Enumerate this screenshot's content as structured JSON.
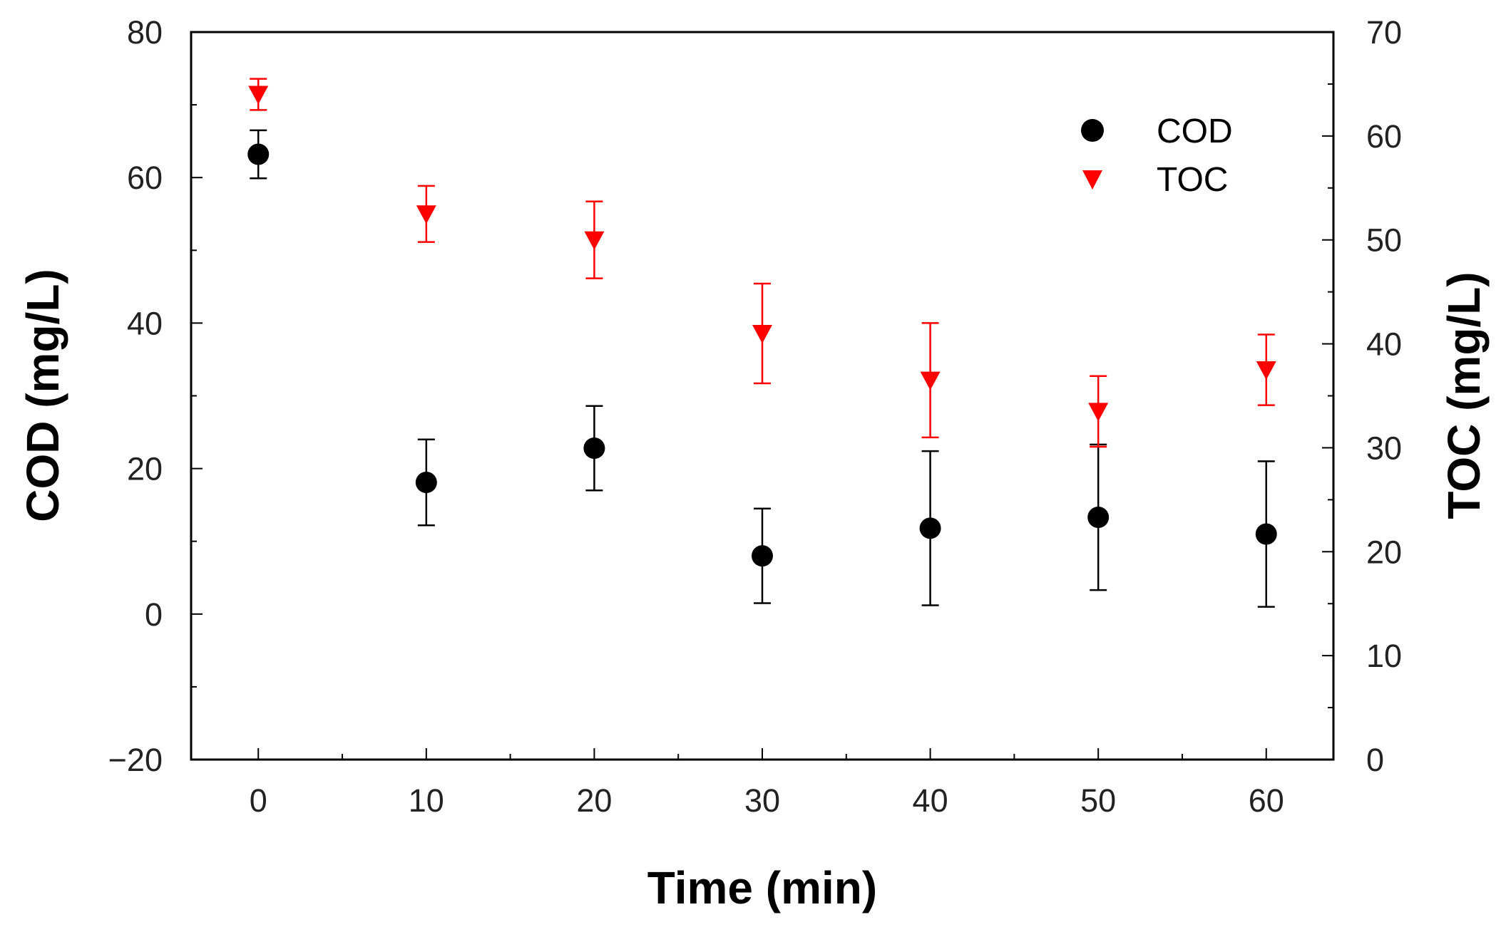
{
  "chart_data": {
    "type": "scatter",
    "title": "",
    "xlabel": "Time (min)",
    "ylabel_left": "COD (mg/L)",
    "ylabel_right": "TOC (mg/L)",
    "xlim": [
      -4,
      64
    ],
    "ylim_left": [
      -20,
      80
    ],
    "ylim_right": [
      0,
      70
    ],
    "x_ticks": [
      0,
      10,
      20,
      30,
      40,
      50,
      60
    ],
    "y_left_ticks": [
      -20,
      0,
      20,
      40,
      60,
      80
    ],
    "y_left_tick_labels": [
      "−20",
      "0",
      "20",
      "40",
      "60",
      "80"
    ],
    "y_right_ticks": [
      0,
      10,
      20,
      30,
      40,
      50,
      60,
      70
    ],
    "legend_position": "top-right",
    "series": [
      {
        "name": "COD",
        "axis": "left",
        "marker": "circle",
        "color": "#000000",
        "x": [
          0,
          10,
          20,
          30,
          40,
          50,
          60
        ],
        "y": [
          63.2,
          18.1,
          22.8,
          8.0,
          11.8,
          13.3,
          11.0
        ],
        "err": [
          3.3,
          5.9,
          5.8,
          6.5,
          10.6,
          10.0,
          10.0
        ]
      },
      {
        "name": "TOC",
        "axis": "right",
        "marker": "triangle-down",
        "color": "#ff0000",
        "x": [
          0,
          10,
          20,
          30,
          40,
          50,
          60
        ],
        "y": [
          64.0,
          52.5,
          50.0,
          41.0,
          36.5,
          33.5,
          37.5
        ],
        "err": [
          1.5,
          2.7,
          3.7,
          4.8,
          5.5,
          3.4,
          3.4
        ]
      }
    ]
  }
}
